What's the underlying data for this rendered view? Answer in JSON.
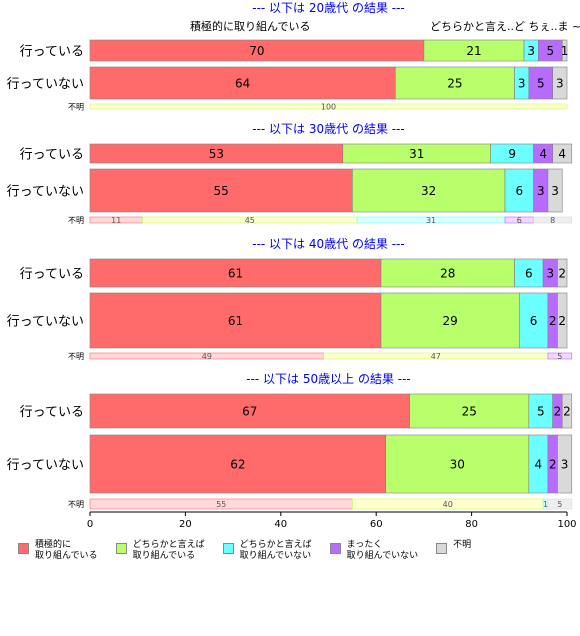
{
  "chart_data": {
    "type": "bar",
    "stacked": "horizontal-100",
    "categories": [
      "積極的に\n取り組んでいる",
      "どちらかと言えば\n取り組んでいる",
      "どちらかと言えば\n取り組んでいない",
      "まったく\n取り組んでいない",
      "不明"
    ],
    "colors": [
      "#ff6b6b",
      "#b8ff6b",
      "#6bffff",
      "#b86bff",
      "#d9d9d9"
    ],
    "xlim": [
      0,
      100
    ],
    "xticks": [
      0,
      20,
      40,
      60,
      80,
      100
    ],
    "panels": [
      {
        "title": "--- 以下は 20歳代 の結果 ---",
        "header_labels": [
          "積極的に取り組んでいる",
          "どちらかと言え..ど ちぇ..ま ~不明"
        ],
        "rows": [
          {
            "label": "行っている",
            "values": [
              70,
              21,
              3,
              5,
              1
            ]
          },
          {
            "label": "行っていない",
            "values": [
              64,
              25,
              3,
              5,
              3
            ]
          }
        ],
        "unknown": {
          "label": "不明",
          "values": [
            0,
            100,
            0,
            0,
            0
          ]
        }
      },
      {
        "title": "--- 以下は 30歳代 の結果 ---",
        "rows": [
          {
            "label": "行っている",
            "values": [
              53,
              31,
              9,
              4,
              4
            ]
          },
          {
            "label": "行っていない",
            "values": [
              55,
              32,
              6,
              3,
              3
            ]
          }
        ],
        "unknown": {
          "label": "不明",
          "values": [
            11,
            45,
            31,
            6,
            8
          ]
        }
      },
      {
        "title": "--- 以下は 40歳代 の結果 ---",
        "rows": [
          {
            "label": "行っている",
            "values": [
              61,
              28,
              6,
              3,
              2
            ]
          },
          {
            "label": "行っていない",
            "values": [
              61,
              29,
              6,
              2,
              2
            ]
          }
        ],
        "unknown": {
          "label": "不明",
          "values": [
            49,
            47,
            0,
            5,
            0
          ]
        }
      },
      {
        "title": "--- 以下は 50歳以上 の結果 ---",
        "rows": [
          {
            "label": "行っている",
            "values": [
              67,
              25,
              5,
              2,
              2
            ]
          },
          {
            "label": "行っていない",
            "values": [
              62,
              30,
              4,
              2,
              3
            ]
          }
        ],
        "unknown": {
          "label": "不明",
          "values": [
            55,
            40,
            1,
            0,
            5
          ]
        }
      }
    ]
  }
}
